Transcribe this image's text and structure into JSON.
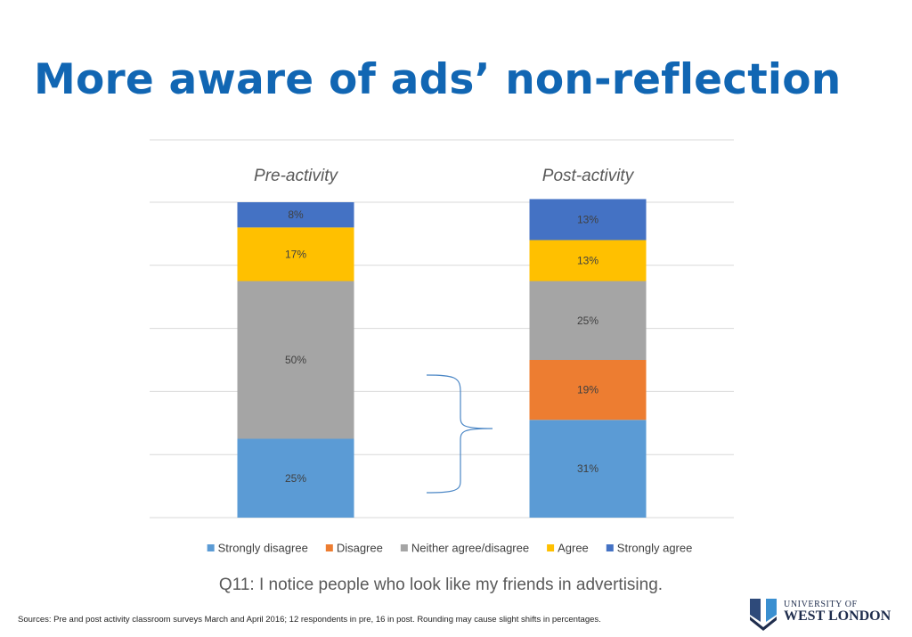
{
  "slide": {
    "title": "More aware of ads’ non-reflection",
    "question": "Q11: I notice people who look like my friends in advertising.",
    "sources": "Sources: Pre and post activity classroom surveys March and April 2016; 12 respondents in pre, 16 in post. Rounding may cause slight  shifts in percentages."
  },
  "logo": {
    "line1": "UNIVERSITY OF",
    "line2": "WEST LONDON"
  },
  "chart_data": {
    "type": "bar",
    "stacked": true,
    "categories": [
      "Pre-activity",
      "Post-activity"
    ],
    "series": [
      {
        "name": "Strongly disagree",
        "color": "#5b9bd5",
        "values": [
          25,
          31
        ],
        "labels": [
          "25%",
          "31%"
        ]
      },
      {
        "name": "Disagree",
        "color": "#ed7d31",
        "values": [
          0,
          19
        ],
        "labels": [
          "",
          "19%"
        ]
      },
      {
        "name": "Neither agree/disagree",
        "color": "#a5a5a5",
        "values": [
          50,
          25
        ],
        "labels": [
          "50%",
          "25%"
        ]
      },
      {
        "name": "Agree",
        "color": "#ffc000",
        "values": [
          17,
          13
        ],
        "labels": [
          "17%",
          "13%"
        ]
      },
      {
        "name": "Strongly agree",
        "color": "#4472c4",
        "values": [
          8,
          13
        ],
        "labels": [
          "8%",
          "13%"
        ]
      }
    ],
    "ylim": [
      0,
      100
    ],
    "grid": true,
    "legend": "bottom",
    "category_labels_position": "top",
    "annotation": "brace spanning the pre-activity disagree portion"
  }
}
